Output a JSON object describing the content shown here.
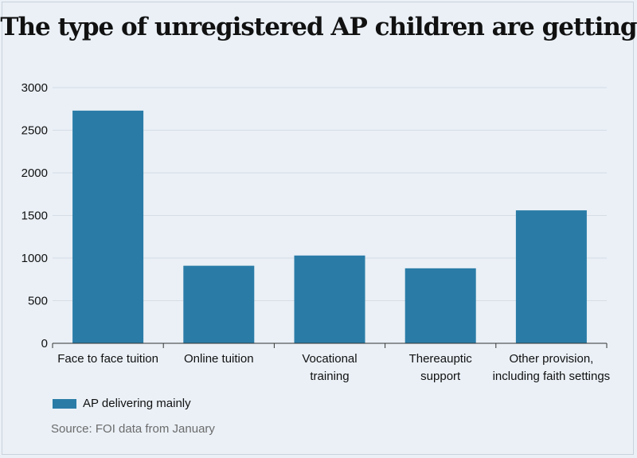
{
  "chart_data": {
    "type": "bar",
    "title": "The type of unregistered AP children are getting",
    "categories": [
      [
        "Face to face tuition"
      ],
      [
        "Online tuition"
      ],
      [
        "Vocational",
        "training"
      ],
      [
        "Thereauptic",
        "support"
      ],
      [
        "Other provision,",
        "including faith settings"
      ]
    ],
    "series": [
      {
        "name": "AP delivering mainly",
        "values": [
          2730,
          910,
          1030,
          880,
          1560
        ]
      }
    ],
    "ylim": [
      0,
      3000
    ],
    "yticks": [
      0,
      500,
      1000,
      1500,
      2000,
      2500,
      3000
    ],
    "xlabel": "",
    "ylabel": "",
    "grid": true,
    "legend": "bottom-left",
    "bar_color": "#2a7ca7",
    "source": "Source: FOI data from January"
  }
}
